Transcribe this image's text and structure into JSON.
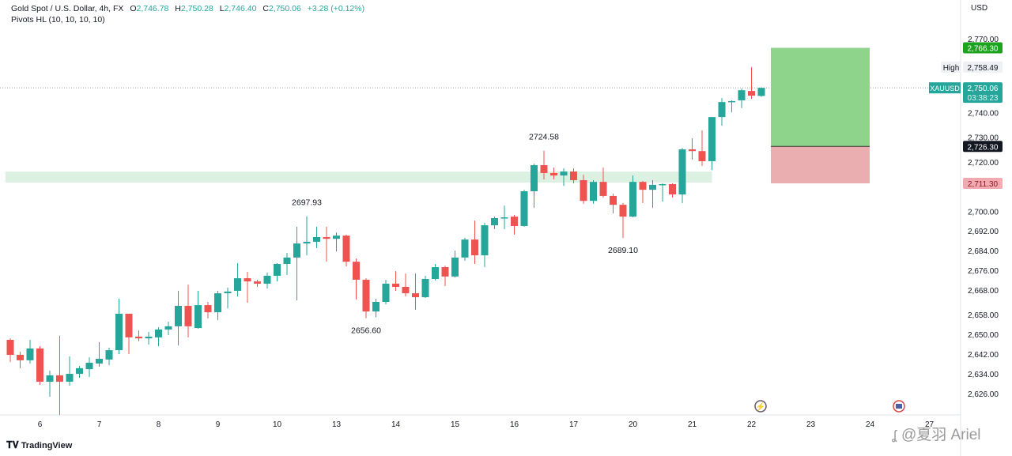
{
  "header": {
    "symbol_line": "Gold Spot / U.S. Dollar, 4h, FX",
    "o_label": "O",
    "o_value": "2,746.78",
    "h_label": "H",
    "h_value": "2,750.28",
    "l_label": "L",
    "l_value": "2,746.40",
    "c_label": "C",
    "c_value": "2,750.06",
    "change": "+3.28 (+0.12%)",
    "indicator": "Pivots HL (10, 10, 10, 10)"
  },
  "currency": "USD",
  "branding": {
    "logo": "TradingView",
    "watermark": "@夏羽 Ariel"
  },
  "colors": {
    "up": "#26a69a",
    "down": "#ef5350",
    "zone": "#d9efdf",
    "target": "#8fd48b",
    "stop": "#eaaeb0",
    "target_label": "#1ea31e",
    "stop_label": "#f2a9b0"
  },
  "chart_data": {
    "type": "candlestick",
    "symbol": "XAUUSD",
    "timeframe": "4h",
    "ylim": [
      2614,
      2780
    ],
    "y_ticks": [
      "2,770.00",
      "2,740.00",
      "2,730.00",
      "2,720.00",
      "2,700.00",
      "2,692.00",
      "2,684.00",
      "2,676.00",
      "2,668.00",
      "2,658.00",
      "2,650.00",
      "2,642.00",
      "2,634.00",
      "2,626.00"
    ],
    "y_tick_values": [
      2770,
      2740,
      2730,
      2720,
      2700,
      2692,
      2684,
      2676,
      2668,
      2658,
      2650,
      2642,
      2634,
      2626
    ],
    "x_ticks": [
      {
        "label": "6",
        "bar": 3
      },
      {
        "label": "7",
        "bar": 9
      },
      {
        "label": "8",
        "bar": 15
      },
      {
        "label": "9",
        "bar": 21
      },
      {
        "label": "10",
        "bar": 27
      },
      {
        "label": "13",
        "bar": 33
      },
      {
        "label": "14",
        "bar": 39
      },
      {
        "label": "15",
        "bar": 45
      },
      {
        "label": "16",
        "bar": 51
      },
      {
        "label": "17",
        "bar": 57
      },
      {
        "label": "20",
        "bar": 63
      },
      {
        "label": "21",
        "bar": 69
      },
      {
        "label": "22",
        "bar": 75
      },
      {
        "label": "23",
        "bar": 81
      },
      {
        "label": "24",
        "bar": 87
      },
      {
        "label": "27",
        "bar": 93
      }
    ],
    "candles": [
      [
        2647.8,
        2648.4,
        2638.8,
        2641.7
      ],
      [
        2641.7,
        2643.0,
        2636.3,
        2639.5
      ],
      [
        2639.5,
        2647.8,
        2638.2,
        2644.3
      ],
      [
        2644.3,
        2645.2,
        2629.5,
        2630.8
      ],
      [
        2630.8,
        2635.3,
        2624.7,
        2633.4
      ],
      [
        2633.4,
        2649.4,
        2617.3,
        2630.8
      ],
      [
        2630.8,
        2641.1,
        2629.2,
        2634.0
      ],
      [
        2634.0,
        2637.2,
        2632.4,
        2636.3
      ],
      [
        2635.9,
        2640.7,
        2632.7,
        2638.5
      ],
      [
        2638.2,
        2646.8,
        2636.9,
        2640.1
      ],
      [
        2639.8,
        2644.6,
        2637.5,
        2643.6
      ],
      [
        2643.6,
        2664.5,
        2642.0,
        2658.4
      ],
      [
        2658.4,
        2658.4,
        2642.0,
        2648.8
      ],
      [
        2649.1,
        2651.6,
        2647.2,
        2648.4
      ],
      [
        2648.4,
        2651.0,
        2645.9,
        2649.1
      ],
      [
        2648.8,
        2652.9,
        2645.2,
        2652.0
      ],
      [
        2652.0,
        2655.2,
        2649.7,
        2653.3
      ],
      [
        2653.3,
        2667.7,
        2645.6,
        2661.6
      ],
      [
        2661.6,
        2670.2,
        2648.8,
        2653.3
      ],
      [
        2652.6,
        2667.7,
        2652.3,
        2661.9
      ],
      [
        2661.9,
        2663.2,
        2656.5,
        2659.0
      ],
      [
        2659.0,
        2667.7,
        2655.8,
        2666.7
      ],
      [
        2666.7,
        2669.0,
        2660.6,
        2667.4
      ],
      [
        2667.7,
        2678.9,
        2665.4,
        2672.8
      ],
      [
        2672.8,
        2675.4,
        2662.9,
        2671.5
      ],
      [
        2671.5,
        2672.2,
        2669.3,
        2670.6
      ],
      [
        2670.6,
        2675.1,
        2668.6,
        2673.8
      ],
      [
        2673.8,
        2678.9,
        2671.5,
        2678.6
      ],
      [
        2678.6,
        2683.1,
        2674.1,
        2681.2
      ],
      [
        2681.2,
        2693.7,
        2663.8,
        2686.9
      ],
      [
        2686.9,
        2697.93,
        2682.1,
        2687.6
      ],
      [
        2687.6,
        2693.7,
        2685.0,
        2689.5
      ],
      [
        2689.5,
        2693.7,
        2679.5,
        2688.8
      ],
      [
        2688.8,
        2691.4,
        2683.7,
        2690.1
      ],
      [
        2690.1,
        2690.5,
        2677.6,
        2679.5
      ],
      [
        2679.5,
        2680.8,
        2664.2,
        2672.2
      ],
      [
        2672.2,
        2672.8,
        2656.6,
        2659.3
      ],
      [
        2659.3,
        2664.5,
        2657.0,
        2663.2
      ],
      [
        2663.2,
        2672.2,
        2662.2,
        2670.6
      ],
      [
        2670.6,
        2675.7,
        2667.7,
        2669.3
      ],
      [
        2669.3,
        2674.7,
        2665.4,
        2666.7
      ],
      [
        2666.7,
        2674.7,
        2660.0,
        2665.1
      ],
      [
        2665.1,
        2673.8,
        2664.8,
        2672.5
      ],
      [
        2672.5,
        2678.6,
        2671.9,
        2677.3
      ],
      [
        2677.3,
        2677.9,
        2669.6,
        2673.5
      ],
      [
        2673.5,
        2684.0,
        2673.1,
        2681.2
      ],
      [
        2681.2,
        2689.2,
        2679.9,
        2688.5
      ],
      [
        2688.5,
        2696.2,
        2678.6,
        2682.1
      ],
      [
        2682.1,
        2695.3,
        2677.3,
        2694.3
      ],
      [
        2694.3,
        2697.8,
        2692.7,
        2697.2
      ],
      [
        2697.2,
        2702.3,
        2692.7,
        2697.5
      ],
      [
        2697.8,
        2698.5,
        2690.5,
        2694.0
      ],
      [
        2694.0,
        2708.7,
        2693.7,
        2708.1
      ],
      [
        2708.1,
        2719.3,
        2701.4,
        2718.7
      ],
      [
        2718.7,
        2724.58,
        2712.9,
        2715.5
      ],
      [
        2715.5,
        2717.7,
        2712.9,
        2714.5
      ],
      [
        2714.5,
        2717.4,
        2710.3,
        2716.1
      ],
      [
        2716.1,
        2717.4,
        2711.3,
        2712.6
      ],
      [
        2712.6,
        2714.8,
        2703.0,
        2704.2
      ],
      [
        2704.2,
        2712.6,
        2703.0,
        2711.9
      ],
      [
        2711.9,
        2717.7,
        2705.5,
        2706.2
      ],
      [
        2706.2,
        2707.1,
        2699.1,
        2702.6
      ],
      [
        2702.6,
        2703.3,
        2689.1,
        2697.8
      ],
      [
        2697.8,
        2714.5,
        2697.5,
        2711.9
      ],
      [
        2711.9,
        2712.3,
        2703.3,
        2708.7
      ],
      [
        2708.7,
        2712.6,
        2701.4,
        2710.7
      ],
      [
        2710.7,
        2711.3,
        2703.9,
        2711.0
      ],
      [
        2711.0,
        2711.3,
        2705.5,
        2706.8
      ],
      [
        2706.8,
        2725.7,
        2703.3,
        2725.1
      ],
      [
        2725.1,
        2729.6,
        2720.9,
        2724.4
      ],
      [
        2724.4,
        2732.8,
        2718.4,
        2720.3
      ],
      [
        2720.3,
        2738.2,
        2716.7,
        2738.2
      ],
      [
        2738.2,
        2745.9,
        2734.7,
        2744.3
      ],
      [
        2744.3,
        2745.0,
        2740.2,
        2744.7
      ],
      [
        2745.0,
        2749.8,
        2741.8,
        2749.1
      ],
      [
        2748.8,
        2758.49,
        2745.6,
        2746.9
      ],
      [
        2746.78,
        2750.28,
        2746.4,
        2750.06
      ]
    ],
    "candle_format": [
      "open",
      "high",
      "low",
      "close"
    ],
    "pivots": [
      {
        "bar": 30,
        "price": 2697.93,
        "label": "2697.93",
        "type": "high"
      },
      {
        "bar": 36,
        "price": 2656.6,
        "label": "2656.60",
        "type": "low"
      },
      {
        "bar": 54,
        "price": 2724.58,
        "label": "2724.58",
        "type": "high"
      },
      {
        "bar": 62,
        "price": 2689.1,
        "label": "2689.10",
        "type": "low"
      }
    ],
    "zone": {
      "from_bar": 0,
      "to_bar": 71,
      "top": 2716.1,
      "bottom": 2711.6
    },
    "position": {
      "type": "long",
      "from_bar": 77,
      "to_bar": 87,
      "target": 2766.3,
      "entry": 2726.3,
      "stop": 2711.3,
      "target_label": "2,766.30",
      "entry_label": "2,726.30",
      "stop_label": "2,711.30"
    },
    "last_price": {
      "value": 2750.06,
      "label": "2,750.06",
      "countdown": "03:38:23",
      "symbol_label": "XAUUSD"
    },
    "high_marker": {
      "value": 2758.49,
      "label": "2,758.49",
      "title": "High"
    },
    "events": [
      {
        "bar": 76,
        "icon": "lightning-icon"
      },
      {
        "bar": 90,
        "icon": "us-flag-icon"
      }
    ]
  }
}
